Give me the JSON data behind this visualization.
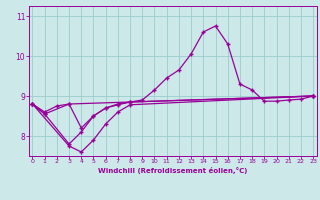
{
  "title": "",
  "xlabel": "Windchill (Refroidissement éolien,°C)",
  "background_color": "#cce8e8",
  "line_color": "#990099",
  "grid_color": "#99cccc",
  "line1_x": [
    0,
    1,
    2,
    3,
    4,
    5,
    6,
    7,
    8,
    9,
    10,
    11,
    12,
    13,
    14,
    15,
    16,
    17,
    18,
    19,
    20,
    21,
    22,
    23
  ],
  "line1_y": [
    8.8,
    8.6,
    8.75,
    8.8,
    8.2,
    8.5,
    8.7,
    8.8,
    8.85,
    8.9,
    9.15,
    9.45,
    9.65,
    10.05,
    10.6,
    10.75,
    10.3,
    9.3,
    9.15,
    8.87,
    8.87,
    8.9,
    8.92,
    9.0
  ],
  "line2_x": [
    0,
    1,
    3,
    8,
    23
  ],
  "line2_y": [
    8.8,
    8.55,
    8.8,
    8.85,
    9.0
  ],
  "line3_x": [
    0,
    1,
    3,
    4,
    5,
    6,
    7,
    8,
    23
  ],
  "line3_y": [
    8.8,
    8.55,
    7.8,
    8.1,
    8.5,
    8.7,
    8.78,
    8.85,
    9.0
  ],
  "line4_x": [
    0,
    3,
    4,
    5,
    6,
    7,
    8,
    23
  ],
  "line4_y": [
    8.8,
    7.75,
    7.6,
    7.9,
    8.3,
    8.6,
    8.78,
    9.0
  ],
  "ylim": [
    7.5,
    11.25
  ],
  "xlim": [
    -0.3,
    23.3
  ],
  "yticks": [
    8,
    9,
    10,
    11
  ],
  "xticks": [
    0,
    1,
    2,
    3,
    4,
    5,
    6,
    7,
    8,
    9,
    10,
    11,
    12,
    13,
    14,
    15,
    16,
    17,
    18,
    19,
    20,
    21,
    22,
    23
  ]
}
